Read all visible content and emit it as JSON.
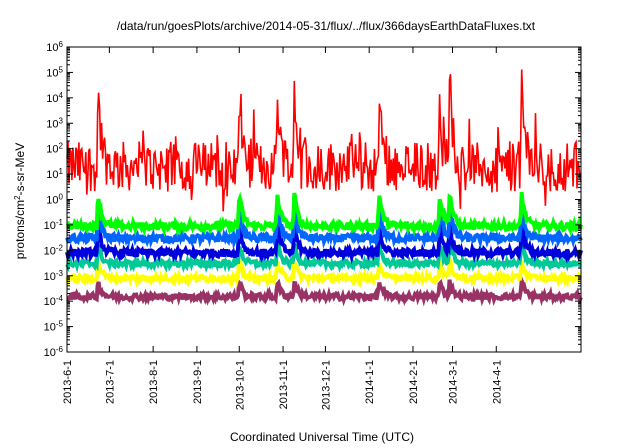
{
  "chart_data": {
    "type": "line",
    "title": "/data/run/goesPlots/archive/2014-05-31/flux/../flux/366daysEarthDataFluxes.txt",
    "xlabel": "Coordinated Universal Time (UTC)",
    "ylabel": "protons/cm2-s-sr-MeV",
    "yscale": "log",
    "ylim": [
      1e-06,
      1000000.0
    ],
    "xlim": [
      "2013-06-01",
      "2014-05-31"
    ],
    "grid": false,
    "legend": "none",
    "y_ticks": [
      {
        "exp": "-6"
      },
      {
        "exp": "-5"
      },
      {
        "exp": "-4"
      },
      {
        "exp": "-3"
      },
      {
        "exp": "-2"
      },
      {
        "exp": "-1"
      },
      {
        "exp": "0"
      },
      {
        "exp": "1"
      },
      {
        "exp": "2"
      },
      {
        "exp": "3"
      },
      {
        "exp": "4"
      },
      {
        "exp": "5"
      },
      {
        "exp": "6"
      }
    ],
    "y_tick_base": "10",
    "x_ticks": [
      "2013-6-1",
      "2013-7-1",
      "2013-8-1",
      "2013-9-1",
      "2013-10-1",
      "2013-11-1",
      "2013-12-1",
      "2014-1-1",
      "2014-2-1",
      "2014-3-1",
      "2014-4-1"
    ],
    "events": [
      "2013-06-23",
      "2013-10-01",
      "2013-10-28",
      "2013-11-09",
      "2014-01-08",
      "2014-02-20",
      "2014-02-27",
      "2014-04-19"
    ],
    "series": [
      {
        "color": "#ff0000",
        "baseline": 20,
        "amplitude_decades": 1.0
      },
      {
        "color": "#00ff00",
        "baseline": 0.09,
        "amplitude_decades": 0.15
      },
      {
        "color": "#0066ff",
        "baseline": 0.03,
        "amplitude_decades": 0.15
      },
      {
        "color": "#0000dd",
        "baseline": 0.008,
        "amplitude_decades": 0.15
      },
      {
        "color": "#00c896",
        "baseline": 0.003,
        "amplitude_decades": 0.12
      },
      {
        "color": "#ffff00",
        "baseline": 0.0008,
        "amplitude_decades": 0.12
      },
      {
        "color": "#993366",
        "baseline": 0.00015,
        "amplitude_decades": 0.12
      }
    ]
  }
}
